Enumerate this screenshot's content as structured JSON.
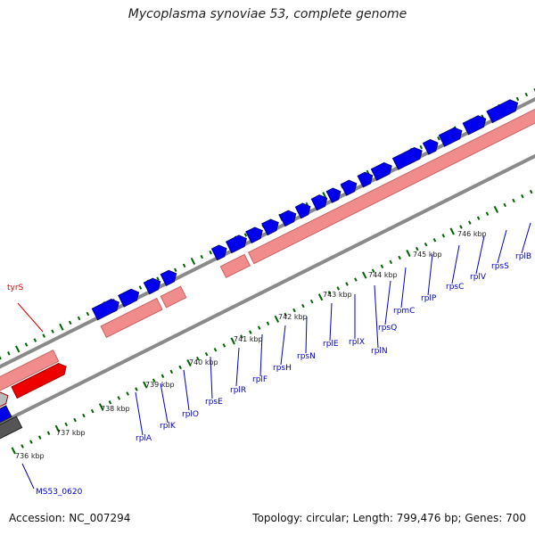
{
  "title": "Mycoplasma synoviae 53, complete genome",
  "footer": {
    "accession": "Accession: NC_007294",
    "stats": "Topology: circular; Length: 799,476 bp; Genes: 700"
  },
  "colors": {
    "forward_gene": "#0000ee",
    "reverse_gene": "#ee0000",
    "operon_band": "#f08c8c",
    "backbone": "#8a8a8a",
    "tick": "#006400",
    "highlight_label": "#dd0000",
    "label": "#0000cc"
  },
  "tick_labels": [
    "736 kbp",
    "737 kbp",
    "738 kbp",
    "739 kbp",
    "740 kbp",
    "741 kbp",
    "742 kbp",
    "743 kbp",
    "744 kbp",
    "745 kbp",
    "746 kbp"
  ],
  "gene_labels": [
    {
      "name": "MS53_0620",
      "color": "blue"
    },
    {
      "name": "rplA",
      "color": "blue"
    },
    {
      "name": "rplK",
      "color": "blue"
    },
    {
      "name": "rplO",
      "color": "blue"
    },
    {
      "name": "rpsE",
      "color": "blue"
    },
    {
      "name": "rplR",
      "color": "blue"
    },
    {
      "name": "rplF",
      "color": "blue"
    },
    {
      "name": "rpsH",
      "color": "blue"
    },
    {
      "name": "rpsN",
      "color": "blue"
    },
    {
      "name": "rplE",
      "color": "blue"
    },
    {
      "name": "rplX",
      "color": "blue"
    },
    {
      "name": "rplN",
      "color": "blue"
    },
    {
      "name": "rpsQ",
      "color": "blue"
    },
    {
      "name": "rpmC",
      "color": "blue"
    },
    {
      "name": "rplP",
      "color": "blue"
    },
    {
      "name": "rpsC",
      "color": "blue"
    },
    {
      "name": "rplV",
      "color": "blue"
    },
    {
      "name": "rpsS",
      "color": "blue"
    },
    {
      "name": "rplB",
      "color": "blue"
    },
    {
      "name": "tyrS",
      "color": "red"
    }
  ]
}
